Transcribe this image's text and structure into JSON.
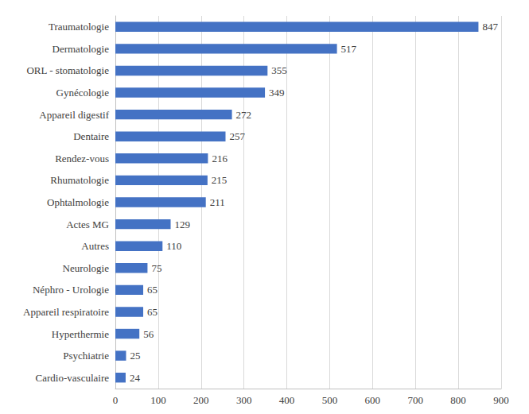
{
  "chart_data": {
    "type": "bar",
    "orientation": "horizontal",
    "categories": [
      "Traumatologie",
      "Dermatologie",
      "ORL - stomatologie",
      "Gynécologie",
      "Appareil digestif",
      "Dentaire",
      "Rendez-vous",
      "Rhumatologie",
      "Ophtalmologie",
      "Actes MG",
      "Autres",
      "Neurologie",
      "Néphro - Urologie",
      "Appareil respiratoire",
      "Hyperthermie",
      "Psychiatrie",
      "Cardio-vasculaire"
    ],
    "values": [
      847,
      517,
      355,
      349,
      272,
      257,
      216,
      215,
      211,
      129,
      110,
      75,
      65,
      65,
      56,
      25,
      24
    ],
    "color": "#4472c4",
    "xlim": [
      0,
      900
    ],
    "xticks": [
      0,
      100,
      200,
      300,
      400,
      500,
      600,
      700,
      800,
      900
    ],
    "grid": true,
    "data_labels": true
  }
}
